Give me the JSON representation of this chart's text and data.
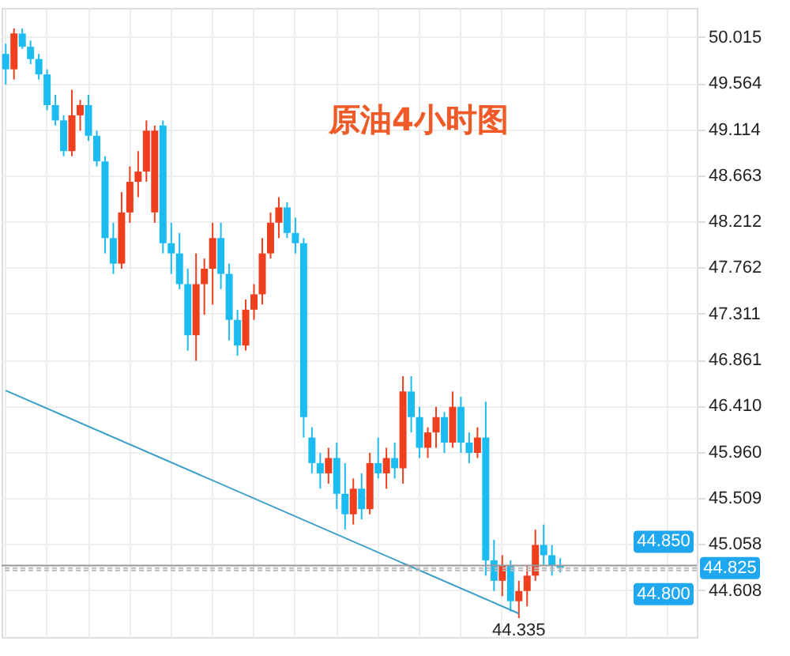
{
  "chart_data": {
    "type": "candlestick",
    "title": "原油4小时图",
    "categories": [
      null,
      null,
      null,
      null,
      null,
      null,
      null,
      null,
      null,
      null,
      null,
      null,
      null,
      null,
      null,
      null,
      null,
      null,
      null,
      null,
      null,
      null,
      null,
      null,
      null,
      null,
      null,
      null,
      null,
      null,
      null,
      null,
      null,
      null,
      null,
      null,
      null,
      null,
      null,
      null,
      null,
      null,
      null,
      null,
      null,
      null,
      null,
      null,
      null,
      null,
      null,
      null,
      null,
      null,
      null,
      null,
      null,
      null,
      null,
      null,
      null,
      null,
      null,
      null,
      null,
      null,
      null,
      null,
      null,
      null,
      null,
      null,
      null,
      null,
      null,
      null,
      null,
      null,
      null,
      null,
      null,
      null,
      null,
      null
    ],
    "ohlc": [
      [
        49.85,
        49.95,
        49.55,
        49.7
      ],
      [
        49.7,
        50.1,
        49.6,
        50.05
      ],
      [
        50.05,
        50.1,
        49.9,
        49.92
      ],
      [
        49.92,
        49.98,
        49.75,
        49.8
      ],
      [
        49.8,
        49.85,
        49.6,
        49.65
      ],
      [
        49.65,
        49.7,
        49.3,
        49.35
      ],
      [
        49.35,
        49.45,
        49.15,
        49.2
      ],
      [
        49.2,
        49.25,
        48.85,
        48.9
      ],
      [
        48.9,
        49.5,
        48.85,
        49.25
      ],
      [
        49.25,
        49.4,
        49.1,
        49.35
      ],
      [
        49.35,
        49.45,
        49.0,
        49.05
      ],
      [
        49.05,
        49.1,
        48.75,
        48.8
      ],
      [
        48.8,
        48.85,
        47.9,
        48.05
      ],
      [
        48.05,
        48.2,
        47.7,
        47.8
      ],
      [
        47.8,
        48.5,
        47.75,
        48.3
      ],
      [
        48.3,
        48.75,
        48.2,
        48.6
      ],
      [
        48.6,
        48.9,
        48.45,
        48.7
      ],
      [
        48.7,
        49.2,
        48.6,
        49.1
      ],
      [
        48.3,
        49.15,
        48.2,
        49.1
      ],
      [
        49.15,
        49.2,
        47.9,
        48.0
      ],
      [
        48.0,
        48.2,
        47.7,
        47.9
      ],
      [
        47.9,
        48.1,
        47.55,
        47.6
      ],
      [
        47.6,
        47.75,
        46.95,
        47.1
      ],
      [
        47.1,
        47.9,
        46.85,
        47.6
      ],
      [
        47.6,
        47.85,
        47.3,
        47.75
      ],
      [
        47.75,
        48.2,
        47.4,
        48.05
      ],
      [
        48.05,
        48.2,
        47.55,
        47.7
      ],
      [
        47.7,
        47.8,
        47.05,
        47.25
      ],
      [
        47.25,
        47.35,
        46.9,
        47.0
      ],
      [
        47.0,
        47.45,
        46.95,
        47.35
      ],
      [
        47.35,
        47.6,
        47.25,
        47.5
      ],
      [
        47.5,
        48.05,
        47.4,
        47.9
      ],
      [
        47.9,
        48.3,
        47.85,
        48.2
      ],
      [
        48.2,
        48.45,
        48.05,
        48.35
      ],
      [
        48.35,
        48.4,
        48.05,
        48.1
      ],
      [
        48.1,
        48.25,
        47.9,
        48.0
      ],
      [
        48.0,
        48.05,
        46.1,
        46.3
      ],
      [
        46.1,
        46.2,
        45.75,
        45.85
      ],
      [
        45.85,
        45.95,
        45.6,
        45.75
      ],
      [
        45.75,
        46.0,
        45.65,
        45.9
      ],
      [
        45.9,
        46.05,
        45.4,
        45.55
      ],
      [
        45.55,
        45.85,
        45.2,
        45.35
      ],
      [
        45.35,
        45.7,
        45.25,
        45.6
      ],
      [
        45.6,
        45.75,
        45.3,
        45.4
      ],
      [
        45.4,
        45.95,
        45.35,
        45.85
      ],
      [
        45.85,
        46.1,
        45.7,
        45.75
      ],
      [
        45.75,
        46.0,
        45.6,
        45.9
      ],
      [
        45.9,
        46.05,
        45.7,
        45.8
      ],
      [
        45.8,
        46.7,
        45.65,
        46.55
      ],
      [
        46.55,
        46.7,
        46.15,
        46.3
      ],
      [
        46.3,
        46.4,
        45.9,
        46.0
      ],
      [
        46.0,
        46.2,
        45.9,
        46.15
      ],
      [
        46.15,
        46.4,
        46.0,
        46.3
      ],
      [
        46.3,
        46.35,
        45.95,
        46.05
      ],
      [
        46.05,
        46.55,
        46.0,
        46.4
      ],
      [
        46.4,
        46.5,
        45.95,
        46.05
      ],
      [
        46.05,
        46.15,
        45.85,
        45.95
      ],
      [
        45.95,
        46.2,
        45.9,
        46.1
      ],
      [
        46.1,
        46.45,
        44.75,
        44.9
      ],
      [
        44.9,
        45.1,
        44.6,
        44.7
      ],
      [
        44.7,
        44.95,
        44.55,
        44.85
      ],
      [
        44.85,
        44.9,
        44.4,
        44.5
      ],
      [
        44.5,
        44.7,
        44.335,
        44.6
      ],
      [
        44.6,
        44.85,
        44.45,
        44.75
      ],
      [
        44.75,
        45.2,
        44.7,
        45.05
      ],
      [
        45.05,
        45.25,
        44.85,
        44.95
      ],
      [
        44.95,
        45.05,
        44.75,
        44.85
      ],
      [
        44.85,
        44.92,
        44.78,
        44.825
      ],
      null,
      null,
      null,
      null,
      null,
      null,
      null,
      null,
      null,
      null,
      null,
      null,
      null,
      null,
      null,
      null
    ],
    "colors": [
      "#1cbcf0",
      "#ef3f1f",
      "#1cbcf0",
      "#1cbcf0",
      "#1cbcf0",
      "#1cbcf0",
      "#1cbcf0",
      "#1cbcf0",
      "#ef3f1f",
      "#ef3f1f",
      "#1cbcf0",
      "#1cbcf0",
      "#1cbcf0",
      "#1cbcf0",
      "#ef3f1f",
      "#ef3f1f",
      "#ef3f1f",
      "#ef3f1f",
      "#ef3f1f",
      "#1cbcf0",
      "#1cbcf0",
      "#1cbcf0",
      "#1cbcf0",
      "#ef3f1f",
      "#ef3f1f",
      "#ef3f1f",
      "#1cbcf0",
      "#1cbcf0",
      "#1cbcf0",
      "#ef3f1f",
      "#ef3f1f",
      "#ef3f1f",
      "#ef3f1f",
      "#ef3f1f",
      "#1cbcf0",
      "#1cbcf0",
      "#1cbcf0",
      "#1cbcf0",
      "#1cbcf0",
      "#ef3f1f",
      "#1cbcf0",
      "#1cbcf0",
      "#ef3f1f",
      "#1cbcf0",
      "#ef3f1f",
      "#1cbcf0",
      "#ef3f1f",
      "#1cbcf0",
      "#ef3f1f",
      "#1cbcf0",
      "#1cbcf0",
      "#ef3f1f",
      "#ef3f1f",
      "#1cbcf0",
      "#ef3f1f",
      "#1cbcf0",
      "#1cbcf0",
      "#ef3f1f",
      "#1cbcf0",
      "#1cbcf0",
      "#ef3f1f",
      "#1cbcf0",
      "#ef3f1f",
      "#ef3f1f",
      "#ef3f1f",
      "#1cbcf0",
      "#1cbcf0",
      "#1cbcf0",
      null,
      null,
      null,
      null,
      null,
      null,
      null,
      null,
      null,
      null,
      null,
      null,
      null,
      null,
      null,
      null
    ],
    "series": [
      {
        "type": "line",
        "color": "#3a9fc8",
        "values": [
          46.56,
          null,
          null,
          null,
          null,
          null,
          null,
          null,
          null,
          null,
          null,
          null,
          null,
          null,
          null,
          null,
          null,
          null,
          null,
          null,
          null,
          null,
          null,
          null,
          null,
          null,
          null,
          null,
          null,
          null,
          null,
          null,
          null,
          null,
          null,
          null,
          null,
          null,
          null,
          null,
          null,
          null,
          null,
          null,
          null,
          null,
          null,
          null,
          null,
          null,
          null,
          null,
          null,
          null,
          null,
          null,
          null,
          null,
          null,
          null,
          null,
          null,
          44.38,
          null,
          null,
          null,
          null,
          null,
          null,
          null,
          null,
          null,
          null,
          null,
          null,
          null,
          null,
          null,
          null,
          null,
          null,
          null,
          null,
          null
        ]
      }
    ],
    "ylim": [
      44.15,
      50.3
    ],
    "yticks": [
      50.015,
      49.564,
      49.114,
      48.663,
      48.212,
      47.762,
      47.311,
      46.861,
      {
        "value": 46.41,
        "label": "46.410"
      },
      {
        "value": 45.96,
        "label": "45.960"
      },
      45.509,
      45.058,
      44.608
    ],
    "ref_lines": [
      {
        "axis": "y",
        "value": 44.85,
        "label": "44.850",
        "color": "#999999",
        "line_style": "solid"
      },
      {
        "axis": "y",
        "value": 44.825,
        "label": "44.825",
        "color": "#bbbbbb",
        "line_style": "dashed"
      },
      {
        "axis": "y",
        "value": 44.8,
        "label": "44.800",
        "color": "#bbbbbb",
        "line_style": "dashed"
      }
    ],
    "annotations": [
      "44.335"
    ],
    "grid": true
  }
}
